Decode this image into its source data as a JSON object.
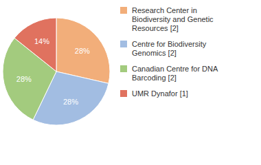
{
  "chart_data": {
    "type": "pie",
    "categories": [
      "Research Center in Biodiversity and Genetic Resources [2]",
      "Centre for Biodiversity Genomics [2]",
      "Canadian Centre for DNA Barcoding [2]",
      "UMR Dynafor [1]"
    ],
    "values": [
      28,
      28,
      28,
      14
    ],
    "value_labels": [
      "28%",
      "28%",
      "28%",
      "14%"
    ],
    "colors": [
      "#f2ae7a",
      "#a2bde2",
      "#a3cb7e",
      "#e0725f"
    ],
    "data_labels": true,
    "legend": "right"
  }
}
